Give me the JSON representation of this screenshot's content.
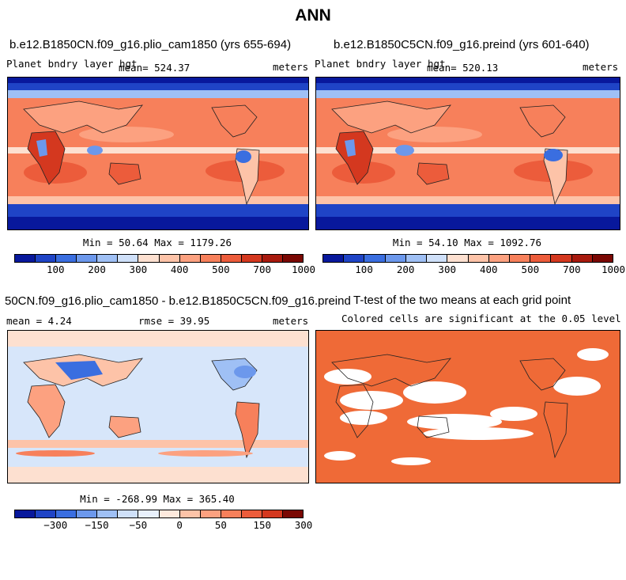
{
  "figure_title": "ANN",
  "colors": {
    "warm": "#f46d43",
    "warm_light": "#fdae8c",
    "cool": "#2c5fd4",
    "cool_dark": "#0a2a9c",
    "cool_light": "#b9d3f5",
    "pale": "#fde0d0",
    "diff_bg": "#d7e6fa",
    "ttest_fill": "#ef6a37",
    "land": "#333333"
  },
  "panels": [
    {
      "id": "panel-a",
      "title": "b.e12.B1850CN.f09_g16.plio_cam1850 (yrs 655-694)",
      "left_label": "Planet bndry layer hgt",
      "center_label": "mean=  524.37",
      "right_label": "meters",
      "stats": "Min =  50.64 Max = 1179.26",
      "colorbar_labels": [
        "100",
        "200",
        "300",
        "400",
        "500",
        "700",
        "1000"
      ],
      "colorbar_colors": [
        "#08189c",
        "#1f44c6",
        "#3a6ee0",
        "#6c98ec",
        "#9fc0f5",
        "#cfe0f9",
        "#fde0d0",
        "#fdc3a8",
        "#fca180",
        "#f7805b",
        "#ec5c3b",
        "#d4381f",
        "#a81a0e",
        "#7a0803"
      ]
    },
    {
      "id": "panel-b",
      "title": "b.e12.B1850C5CN.f09_g16.preind (yrs 601-640)",
      "left_label": "Planet bndry layer hgt",
      "center_label": "mean=  520.13",
      "right_label": "meters",
      "stats": "Min =  54.10 Max = 1092.76",
      "colorbar_labels": [
        "100",
        "200",
        "300",
        "400",
        "500",
        "700",
        "1000"
      ],
      "colorbar_colors": [
        "#08189c",
        "#1f44c6",
        "#3a6ee0",
        "#6c98ec",
        "#9fc0f5",
        "#cfe0f9",
        "#fde0d0",
        "#fdc3a8",
        "#fca180",
        "#f7805b",
        "#ec5c3b",
        "#d4381f",
        "#a81a0e",
        "#7a0803"
      ]
    },
    {
      "id": "panel-c",
      "title": "50CN.f09_g16.plio_cam1850 - b.e12.B1850C5CN.f09_g16.preind",
      "left_label": "mean =    4.24",
      "center_label": "rmse =  39.95",
      "right_label": "meters",
      "stats": "Min = -268.99 Max = 365.40",
      "colorbar_labels": [
        "−300",
        "−150",
        "−50",
        "0",
        "50",
        "150",
        "300"
      ],
      "colorbar_colors": [
        "#08189c",
        "#1f44c6",
        "#3a6ee0",
        "#6c98ec",
        "#9fc0f5",
        "#cfe0f9",
        "#e8f0fc",
        "#fde9dd",
        "#fdc3a8",
        "#fca180",
        "#f7805b",
        "#ec5c3b",
        "#d4381f",
        "#7a0803"
      ]
    },
    {
      "id": "panel-d",
      "title": "T-test of the two means at each grid point",
      "subtitle": "Colored cells are significant at the 0.05 level"
    }
  ]
}
